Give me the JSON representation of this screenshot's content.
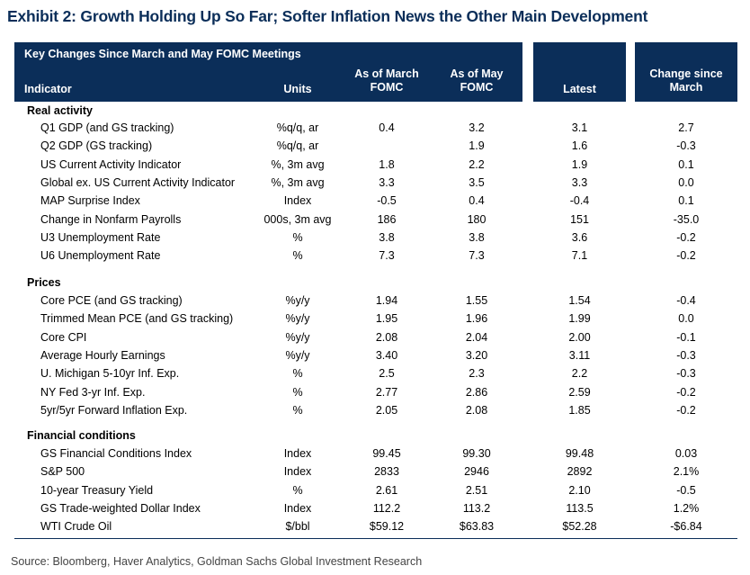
{
  "exhibit_title": "Exhibit 2: Growth Holding Up So Far; Softer Inflation News the Other Main Development",
  "table": {
    "title": "Key Changes Since March and May FOMC Meetings",
    "headers": {
      "indicator": "Indicator",
      "units": "Units",
      "march_line1": "As of March",
      "march_line2": "FOMC",
      "may_line1": "As of May",
      "may_line2": "FOMC",
      "latest": "Latest",
      "change_line1": "Change since",
      "change_line2": "March"
    },
    "sections": [
      {
        "label": "Real activity",
        "rows": [
          {
            "indicator": "Q1 GDP (and GS tracking)",
            "units": "%q/q, ar",
            "march": "0.4",
            "may": "3.2",
            "latest": "3.1",
            "change": "2.7"
          },
          {
            "indicator": "Q2 GDP (GS tracking)",
            "units": "%q/q, ar",
            "march": "",
            "may": "1.9",
            "latest": "1.6",
            "change": "-0.3"
          },
          {
            "indicator": "US Current Activity Indicator",
            "units": "%, 3m avg",
            "march": "1.8",
            "may": "2.2",
            "latest": "1.9",
            "change": "0.1"
          },
          {
            "indicator": "Global ex. US Current Activity Indicator",
            "units": "%, 3m avg",
            "march": "3.3",
            "may": "3.5",
            "latest": "3.3",
            "change": "0.0"
          },
          {
            "indicator": "MAP Surprise Index",
            "units": "Index",
            "march": "-0.5",
            "may": "0.4",
            "latest": "-0.4",
            "change": "0.1"
          },
          {
            "indicator": "Change in Nonfarm Payrolls",
            "units": "000s, 3m avg",
            "march": "186",
            "may": "180",
            "latest": "151",
            "change": "-35.0"
          },
          {
            "indicator": "U3 Unemployment Rate",
            "units": "%",
            "march": "3.8",
            "may": "3.8",
            "latest": "3.6",
            "change": "-0.2"
          },
          {
            "indicator": "U6 Unemployment Rate",
            "units": "%",
            "march": "7.3",
            "may": "7.3",
            "latest": "7.1",
            "change": "-0.2"
          }
        ]
      },
      {
        "label": "Prices",
        "rows": [
          {
            "indicator": "Core PCE (and GS tracking)",
            "units": "%y/y",
            "march": "1.94",
            "may": "1.55",
            "latest": "1.54",
            "change": "-0.4"
          },
          {
            "indicator": "Trimmed Mean PCE (and GS tracking)",
            "units": "%y/y",
            "march": "1.95",
            "may": "1.96",
            "latest": "1.99",
            "change": "0.0"
          },
          {
            "indicator": "Core CPI",
            "units": "%y/y",
            "march": "2.08",
            "may": "2.04",
            "latest": "2.00",
            "change": "-0.1"
          },
          {
            "indicator": "Average Hourly Earnings",
            "units": "%y/y",
            "march": "3.40",
            "may": "3.20",
            "latest": "3.11",
            "change": "-0.3"
          },
          {
            "indicator": "U. Michigan 5-10yr Inf. Exp.",
            "units": "%",
            "march": "2.5",
            "may": "2.3",
            "latest": "2.2",
            "change": "-0.3"
          },
          {
            "indicator": "NY Fed 3-yr Inf. Exp.",
            "units": "%",
            "march": "2.77",
            "may": "2.86",
            "latest": "2.59",
            "change": "-0.2"
          },
          {
            "indicator": "5yr/5yr Forward Inflation Exp.",
            "units": "%",
            "march": "2.05",
            "may": "2.08",
            "latest": "1.85",
            "change": "-0.2"
          }
        ]
      },
      {
        "label": "Financial conditions",
        "rows": [
          {
            "indicator": "GS Financial Conditions Index",
            "units": "Index",
            "march": "99.45",
            "may": "99.30",
            "latest": "99.48",
            "change": "0.03"
          },
          {
            "indicator": "S&P 500",
            "units": "Index",
            "march": "2833",
            "may": "2946",
            "latest": "2892",
            "change": "2.1%"
          },
          {
            "indicator": "10-year Treasury Yield",
            "units": "%",
            "march": "2.61",
            "may": "2.51",
            "latest": "2.10",
            "change": "-0.5"
          },
          {
            "indicator": "GS Trade-weighted Dollar Index",
            "units": "Index",
            "march": "112.2",
            "may": "113.2",
            "latest": "113.5",
            "change": "1.2%"
          },
          {
            "indicator": "WTI Crude Oil",
            "units": "$/bbl",
            "march": "$59.12",
            "may": "$63.83",
            "latest": "$52.28",
            "change": "-$6.84"
          }
        ]
      }
    ]
  },
  "source": "Source: Bloomberg, Haver Analytics, Goldman Sachs Global Investment Research",
  "colors": {
    "header_bg": "#0b2e59",
    "title": "#0b2e59"
  }
}
